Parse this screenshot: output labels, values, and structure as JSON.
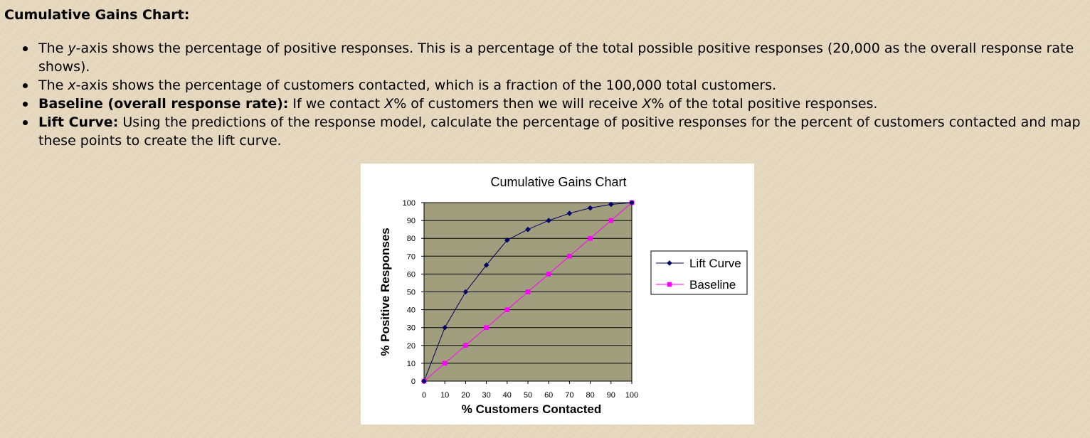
{
  "heading": "Cumulative Gains Chart:",
  "bullets": [
    {
      "parts": [
        {
          "text": "The ",
          "style": "normal"
        },
        {
          "text": "y",
          "style": "italic"
        },
        {
          "text": "-axis shows the percentage of positive responses. This is a percentage of the total possible positive responses (20,000 as the overall response rate shows).",
          "style": "normal"
        }
      ]
    },
    {
      "parts": [
        {
          "text": "The ",
          "style": "normal"
        },
        {
          "text": "x",
          "style": "italic"
        },
        {
          "text": "-axis shows the percentage of customers contacted, which is a fraction of the 100,000 total customers.",
          "style": "normal"
        }
      ]
    },
    {
      "parts": [
        {
          "text": "Baseline (overall response rate):",
          "style": "bold"
        },
        {
          "text": " If we contact ",
          "style": "normal"
        },
        {
          "text": "X",
          "style": "italic"
        },
        {
          "text": "% of customers then we will receive ",
          "style": "normal"
        },
        {
          "text": "X",
          "style": "italic"
        },
        {
          "text": "% of the total positive responses.",
          "style": "normal"
        }
      ]
    },
    {
      "parts": [
        {
          "text": "Lift Curve:",
          "style": "bold"
        },
        {
          "text": " Using the predictions of the response model, calculate the percentage of positive responses for the percent of customers contacted and map these points to create the lift curve.",
          "style": "normal"
        }
      ]
    }
  ],
  "chart_data": {
    "type": "line",
    "title": "Cumulative Gains Chart",
    "xlabel": "% Customers Contacted",
    "ylabel": "% Positive Responses",
    "x": [
      0,
      10,
      20,
      30,
      40,
      50,
      60,
      70,
      80,
      90,
      100
    ],
    "xticks": [
      "0",
      "10",
      "20",
      "30",
      "40",
      "50",
      "60",
      "70",
      "80",
      "90",
      "100"
    ],
    "yticks": [
      "0",
      "10",
      "20",
      "30",
      "40",
      "50",
      "60",
      "70",
      "80",
      "90",
      "100"
    ],
    "xlim": [
      0,
      100
    ],
    "ylim": [
      0,
      100
    ],
    "grid": "horizontal",
    "legend_position": "right",
    "plot_background": "#a09e7c",
    "series": [
      {
        "name": "Lift Curve",
        "values": [
          0,
          30,
          50,
          65,
          79,
          85,
          90,
          94,
          97,
          99,
          100
        ],
        "color": "#000066",
        "marker": "diamond"
      },
      {
        "name": "Baseline",
        "values": [
          0,
          10,
          20,
          30,
          40,
          50,
          60,
          70,
          80,
          90,
          100
        ],
        "color": "#ff00ff",
        "marker": "square"
      }
    ]
  }
}
